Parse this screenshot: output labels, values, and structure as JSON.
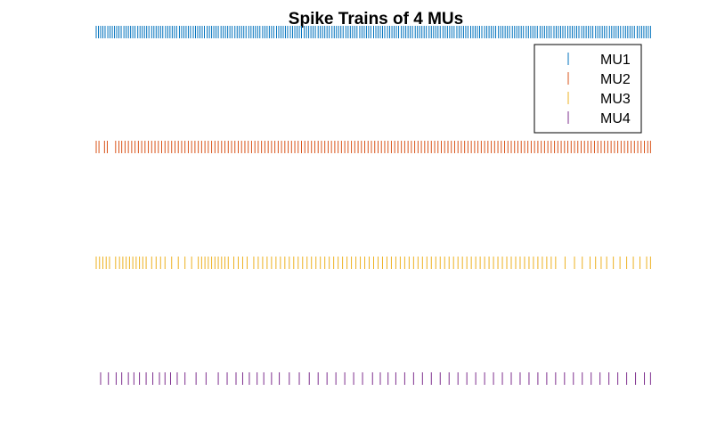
{
  "chart_data": {
    "type": "raster",
    "title": "Spike Trains of 4 MUs",
    "xlabel": "",
    "ylabel": "",
    "xlim": [
      0,
      1000
    ],
    "grid": false,
    "axes_visible": false,
    "legend_position": "top-right",
    "series": [
      {
        "name": "MU1",
        "color": "#0072BD",
        "spikes": [
          0,
          4,
          8,
          12,
          16,
          21,
          25,
          29,
          33,
          37,
          41,
          45,
          50,
          54,
          58,
          62,
          66,
          70,
          75,
          79,
          83,
          87,
          91,
          95,
          100,
          104,
          108,
          112,
          116,
          120,
          125,
          129,
          133,
          137,
          141,
          145,
          150,
          154,
          158,
          162,
          166,
          170,
          175,
          179,
          183,
          187,
          191,
          195,
          200,
          204,
          208,
          212,
          216,
          220,
          225,
          229,
          233,
          237,
          241,
          245,
          250,
          254,
          258,
          262,
          266,
          270,
          275,
          279,
          283,
          287,
          291,
          295,
          300,
          304,
          308,
          312,
          316,
          320,
          325,
          329,
          333,
          337,
          341,
          345,
          350,
          354,
          358,
          362,
          366,
          370,
          375,
          379,
          383,
          387,
          391,
          395,
          400,
          404,
          408,
          412,
          416,
          420,
          425,
          429,
          433,
          437,
          441,
          445,
          450,
          454,
          458,
          462,
          466,
          470,
          475,
          479,
          483,
          487,
          491,
          495,
          500,
          504,
          508,
          512,
          516,
          520,
          525,
          529,
          533,
          537,
          541,
          545,
          550,
          554,
          558,
          562,
          566,
          570,
          575,
          579,
          583,
          587,
          591,
          595,
          600,
          604,
          608,
          612,
          616,
          620,
          625,
          629,
          633,
          637,
          641,
          645,
          650,
          654,
          658,
          662,
          666,
          670,
          675,
          679,
          683,
          687,
          691,
          695,
          700,
          704,
          708,
          712,
          716,
          720,
          725,
          729,
          733,
          737,
          741,
          745,
          750,
          754,
          758,
          762,
          766,
          770,
          775,
          779,
          783,
          787,
          791,
          795,
          800,
          804,
          808,
          812,
          816,
          820,
          825,
          829,
          833,
          837,
          841,
          845,
          850,
          854,
          858,
          862,
          866,
          870,
          875,
          879,
          883,
          887,
          891,
          895,
          900,
          904,
          908,
          912,
          916,
          920,
          925,
          929,
          933,
          937,
          941,
          945,
          950,
          954,
          958,
          962,
          966,
          970,
          975,
          979,
          983,
          987,
          991,
          995,
          999
        ]
      },
      {
        "name": "MU2",
        "color": "#D95319",
        "spikes": [
          0,
          5,
          15,
          20,
          35,
          41,
          46,
          52,
          58,
          64,
          70,
          76,
          82,
          88,
          94,
          100,
          106,
          112,
          118,
          124,
          130,
          136,
          142,
          148,
          154,
          160,
          166,
          172,
          178,
          184,
          190,
          196,
          202,
          208,
          214,
          220,
          226,
          232,
          238,
          244,
          250,
          256,
          262,
          268,
          274,
          280,
          286,
          292,
          298,
          304,
          310,
          316,
          322,
          328,
          334,
          340,
          346,
          352,
          358,
          364,
          370,
          376,
          382,
          388,
          394,
          400,
          406,
          412,
          418,
          424,
          430,
          436,
          442,
          448,
          454,
          460,
          466,
          472,
          478,
          484,
          490,
          496,
          502,
          508,
          514,
          520,
          526,
          532,
          538,
          544,
          550,
          556,
          562,
          568,
          574,
          580,
          586,
          592,
          598,
          604,
          610,
          616,
          622,
          628,
          634,
          640,
          646,
          652,
          658,
          664,
          670,
          676,
          682,
          688,
          694,
          700,
          706,
          712,
          718,
          724,
          730,
          736,
          742,
          748,
          754,
          760,
          766,
          772,
          778,
          784,
          790,
          796,
          802,
          808,
          814,
          820,
          826,
          832,
          838,
          844,
          850,
          856,
          862,
          868,
          874,
          880,
          886,
          892,
          898,
          904,
          910,
          916,
          922,
          928,
          934,
          940,
          946,
          952,
          958,
          964,
          970,
          976,
          982,
          988,
          994,
          999
        ]
      },
      {
        "name": "MU3",
        "color": "#EDB120",
        "spikes": [
          0,
          6,
          12,
          18,
          24,
          35,
          42,
          48,
          54,
          60,
          66,
          72,
          78,
          84,
          90,
          100,
          108,
          116,
          124,
          136,
          148,
          160,
          172,
          184,
          190,
          196,
          202,
          208,
          214,
          220,
          226,
          232,
          238,
          248,
          256,
          264,
          272,
          284,
          292,
          300,
          308,
          316,
          324,
          332,
          340,
          348,
          356,
          364,
          372,
          380,
          388,
          396,
          404,
          412,
          420,
          428,
          436,
          444,
          452,
          460,
          468,
          476,
          484,
          492,
          500,
          508,
          516,
          524,
          532,
          540,
          548,
          556,
          564,
          572,
          580,
          588,
          596,
          604,
          612,
          620,
          628,
          636,
          644,
          652,
          660,
          668,
          676,
          684,
          692,
          700,
          708,
          716,
          724,
          732,
          740,
          748,
          756,
          764,
          772,
          780,
          788,
          796,
          804,
          812,
          820,
          828,
          845,
          862,
          876,
          890,
          900,
          910,
          920,
          932,
          944,
          956,
          968,
          980,
          992,
          999
        ]
      },
      {
        "name": "MU4",
        "color": "#7E2F8E",
        "spikes": [
          8,
          22,
          36,
          46,
          58,
          68,
          78,
          90,
          102,
          114,
          124,
          134,
          146,
          160,
          180,
          198,
          220,
          236,
          252,
          264,
          276,
          290,
          302,
          316,
          330,
          348,
          366,
          384,
          400,
          416,
          432,
          448,
          464,
          480,
          498,
          512,
          526,
          540,
          556,
          572,
          588,
          604,
          620,
          636,
          652,
          668,
          684,
          700,
          716,
          732,
          748,
          764,
          780,
          796,
          812,
          828,
          844,
          860,
          876,
          892,
          908,
          924,
          940,
          956,
          972,
          988,
          999
        ]
      }
    ]
  }
}
